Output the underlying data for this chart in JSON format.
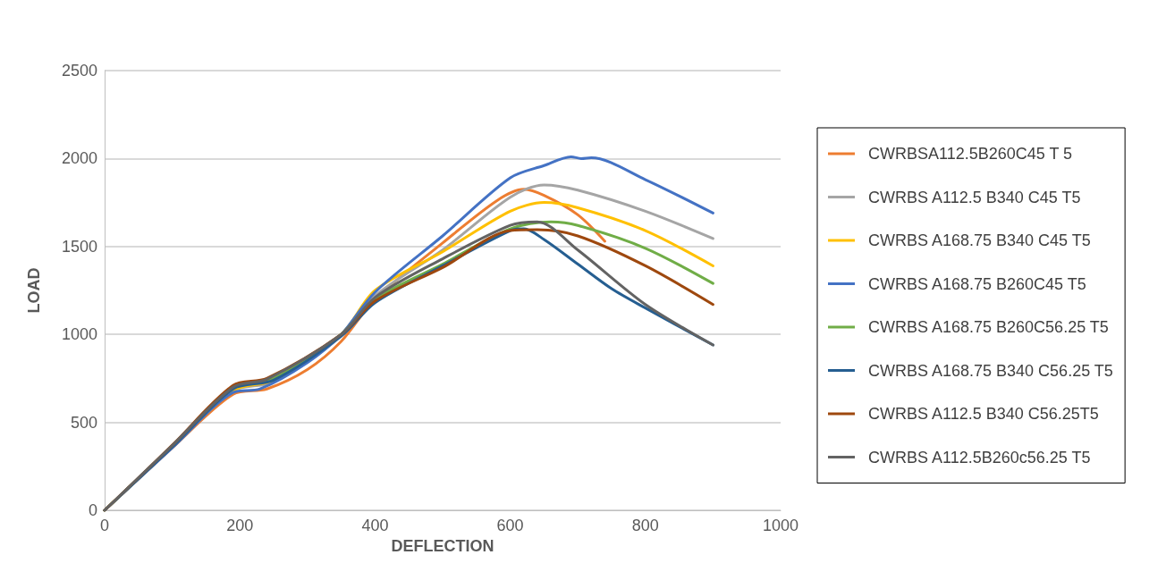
{
  "chart_data": {
    "type": "line",
    "xlabel": "DEFLECTION",
    "ylabel": "LOAD",
    "xlim": [
      0,
      1000
    ],
    "xticks": [
      0,
      200,
      400,
      600,
      800,
      1000
    ],
    "ylim": [
      0,
      2500
    ],
    "yticks": [
      0,
      500,
      1000,
      1500,
      2000,
      2500
    ],
    "grid": "y",
    "legend": "right",
    "marker": "none",
    "line_style": "solid",
    "series": [
      {
        "name": "CWRBSA112.5B260C45 T 5",
        "color": "#ed7d31",
        "x": [
          0,
          100,
          190,
          240,
          300,
          350,
          400,
          500,
          580,
          620,
          650,
          700,
          740
        ],
        "values": [
          0,
          355,
          660,
          690,
          800,
          960,
          1200,
          1520,
          1760,
          1825,
          1790,
          1680,
          1530
        ]
      },
      {
        "name": "CWRBS A112.5 B340 C45 T5",
        "color": "#a5a5a5",
        "x": [
          0,
          100,
          190,
          250,
          350,
          400,
          500,
          600,
          650,
          700,
          800,
          900
        ],
        "values": [
          0,
          360,
          680,
          730,
          990,
          1220,
          1480,
          1780,
          1850,
          1820,
          1700,
          1545
        ]
      },
      {
        "name": "CWRBS A168.75 B340 C45 T5",
        "color": "#ffc000",
        "x": [
          0,
          100,
          190,
          250,
          350,
          400,
          500,
          600,
          650,
          700,
          800,
          900
        ],
        "values": [
          0,
          360,
          680,
          740,
          1000,
          1250,
          1470,
          1700,
          1750,
          1720,
          1590,
          1390
        ]
      },
      {
        "name": "CWRBS A168.75 B260C45 T5",
        "color": "#4472c4",
        "x": [
          0,
          100,
          190,
          230,
          300,
          350,
          400,
          500,
          600,
          650,
          690,
          705,
          720,
          800,
          900
        ],
        "values": [
          0,
          355,
          670,
          690,
          840,
          1000,
          1240,
          1560,
          1890,
          1960,
          2010,
          2000,
          2005,
          1880,
          1690
        ]
      },
      {
        "name": "CWRBS A168.75 B260C56.25 T5",
        "color": "#70ad47",
        "x": [
          0,
          100,
          190,
          250,
          350,
          400,
          500,
          600,
          660,
          700,
          800,
          900
        ],
        "values": [
          0,
          365,
          700,
          750,
          1000,
          1200,
          1400,
          1600,
          1640,
          1620,
          1490,
          1290
        ]
      },
      {
        "name": "CWRBS A168.75 B340 C56.25 T5",
        "color": "#255e91",
        "x": [
          0,
          100,
          190,
          250,
          350,
          400,
          500,
          600,
          620,
          650,
          700,
          750,
          800,
          900
        ],
        "values": [
          0,
          360,
          690,
          740,
          990,
          1180,
          1390,
          1590,
          1600,
          1540,
          1400,
          1260,
          1150,
          940
        ]
      },
      {
        "name": "CWRBS A112.5 B340 C56.25T5",
        "color": "#9e480e",
        "x": [
          0,
          100,
          190,
          240,
          350,
          400,
          500,
          600,
          640,
          700,
          800,
          900
        ],
        "values": [
          0,
          370,
          710,
          750,
          1000,
          1190,
          1380,
          1590,
          1595,
          1560,
          1390,
          1170
        ]
      },
      {
        "name": "CWRBS A112.5B260c56.25 T5",
        "color": "#636363",
        "x": [
          0,
          100,
          190,
          240,
          350,
          400,
          500,
          600,
          640,
          700,
          800,
          900
        ],
        "values": [
          0,
          368,
          700,
          745,
          1000,
          1210,
          1430,
          1620,
          1640,
          1480,
          1170,
          940
        ]
      }
    ]
  }
}
